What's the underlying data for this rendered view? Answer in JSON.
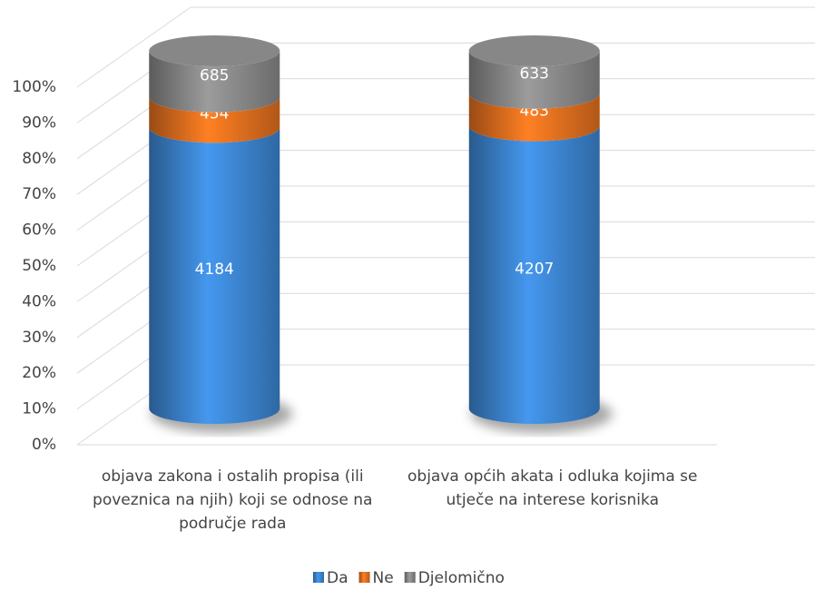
{
  "chart_data": {
    "type": "cylinder_stacked_percent",
    "categories": [
      "objava zakona i ostalih propisa (ili poveznica na njih) koji se odnose na područje rada",
      "objava općih akata i odluka kojima se utječe na interese korisnika"
    ],
    "series": [
      {
        "name": "Da",
        "color": "#3f8ad9",
        "values": [
          4184,
          4207
        ]
      },
      {
        "name": "Ne",
        "color": "#ec7420",
        "values": [
          454,
          483
        ]
      },
      {
        "name": "Djelomično",
        "color": "#8e8e8e",
        "values": [
          685,
          633
        ]
      }
    ],
    "ylim": [
      0,
      100
    ],
    "yticks": [
      {
        "value": 0,
        "label": "0%"
      },
      {
        "value": 10,
        "label": "10%"
      },
      {
        "value": 20,
        "label": "20%"
      },
      {
        "value": 30,
        "label": "30%"
      },
      {
        "value": 40,
        "label": "40%"
      },
      {
        "value": 50,
        "label": "50%"
      },
      {
        "value": 60,
        "label": "60%"
      },
      {
        "value": 70,
        "label": "70%"
      },
      {
        "value": 80,
        "label": "80%"
      },
      {
        "value": 90,
        "label": "90%"
      },
      {
        "value": 100,
        "label": "100%"
      }
    ],
    "grid": true,
    "legend": "bottom"
  }
}
